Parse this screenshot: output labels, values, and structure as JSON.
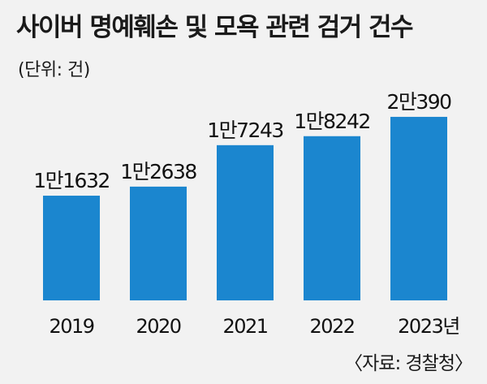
{
  "header": {
    "title": "사이버 명예훼손 및 모욕 관련 검거 건수",
    "unit": "(단위: 건)"
  },
  "footer": {
    "source": "〈자료: 경찰청〉"
  },
  "colors": {
    "bar": "#1b86cf",
    "background": "#f2f2f2"
  },
  "chart_data": {
    "type": "bar",
    "title": "사이버 명예훼손 및 모욕 관련 검거 건수",
    "unit": "(단위: 건)",
    "categories": [
      "2019",
      "2020",
      "2021",
      "2022",
      "2023년"
    ],
    "values": [
      11632,
      12638,
      17243,
      18242,
      20390
    ],
    "value_labels": [
      "1만1632",
      "1만2638",
      "1만7243",
      "1만8242",
      "2만390"
    ],
    "ylim": [
      0,
      23000
    ],
    "grid": false,
    "legend": "none"
  }
}
